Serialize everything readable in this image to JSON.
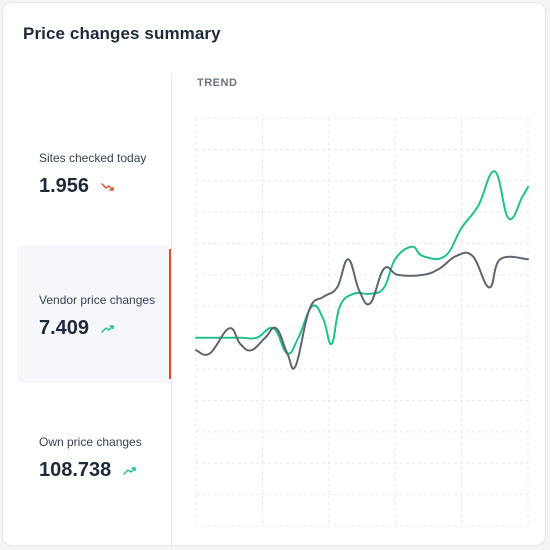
{
  "card": {
    "title": "Price changes summary"
  },
  "metrics": [
    {
      "label": "Sites checked today",
      "value": "1.956",
      "trend": "down",
      "trend_icon": "trend-down-icon",
      "trend_color": "#d9532c",
      "active": false
    },
    {
      "label": "Vendor price changes",
      "value": "7.409",
      "trend": "up",
      "trend_icon": "trend-up-icon",
      "trend_color": "#22c08a",
      "active": true
    },
    {
      "label": "Own price changes",
      "value": "108.738",
      "trend": "up",
      "trend_icon": "trend-up-icon",
      "trend_color": "#22c08a",
      "active": false
    }
  ],
  "colors": {
    "accent_active": "#d9532c",
    "series_green": "#22c08a",
    "series_gray": "#5f6670",
    "grid": "#e6e8ec"
  },
  "chart": {
    "label": "TREND",
    "chart_data": {
      "type": "line",
      "grid": true,
      "xlim": [
        0,
        12
      ],
      "ylim": [
        0,
        13
      ],
      "series": [
        {
          "color": "#22c08a",
          "points": [
            [
              0,
              6.0
            ],
            [
              1,
              6.0
            ],
            [
              1.6,
              6.0
            ],
            [
              2.2,
              6.0
            ],
            [
              2.8,
              6.3
            ],
            [
              3.3,
              5.5
            ],
            [
              3.7,
              6.0
            ],
            [
              4.2,
              7.0
            ],
            [
              4.6,
              6.6
            ],
            [
              4.9,
              5.8
            ],
            [
              5.2,
              7.0
            ],
            [
              5.7,
              7.4
            ],
            [
              6.3,
              7.4
            ],
            [
              6.8,
              7.6
            ],
            [
              7.2,
              8.5
            ],
            [
              7.8,
              8.9
            ],
            [
              8.2,
              8.6
            ],
            [
              9.0,
              8.6
            ],
            [
              9.6,
              9.5
            ],
            [
              10.2,
              10.2
            ],
            [
              10.8,
              11.3
            ],
            [
              11.3,
              9.8
            ],
            [
              11.8,
              10.5
            ],
            [
              12,
              10.8
            ]
          ]
        },
        {
          "color": "#5f6670",
          "points": [
            [
              0,
              5.6
            ],
            [
              0.5,
              5.5
            ],
            [
              1.2,
              6.3
            ],
            [
              1.6,
              5.8
            ],
            [
              2.0,
              5.6
            ],
            [
              2.5,
              6.0
            ],
            [
              2.9,
              6.3
            ],
            [
              3.3,
              5.5
            ],
            [
              3.6,
              5.1
            ],
            [
              4.1,
              6.9
            ],
            [
              4.6,
              7.3
            ],
            [
              5.1,
              7.6
            ],
            [
              5.5,
              8.5
            ],
            [
              5.9,
              7.5
            ],
            [
              6.3,
              7.1
            ],
            [
              6.8,
              8.2
            ],
            [
              7.3,
              8.0
            ],
            [
              8.2,
              8.0
            ],
            [
              8.8,
              8.2
            ],
            [
              9.4,
              8.6
            ],
            [
              10.0,
              8.6
            ],
            [
              10.6,
              7.6
            ],
            [
              11.0,
              8.5
            ],
            [
              12,
              8.5
            ]
          ]
        }
      ]
    }
  }
}
